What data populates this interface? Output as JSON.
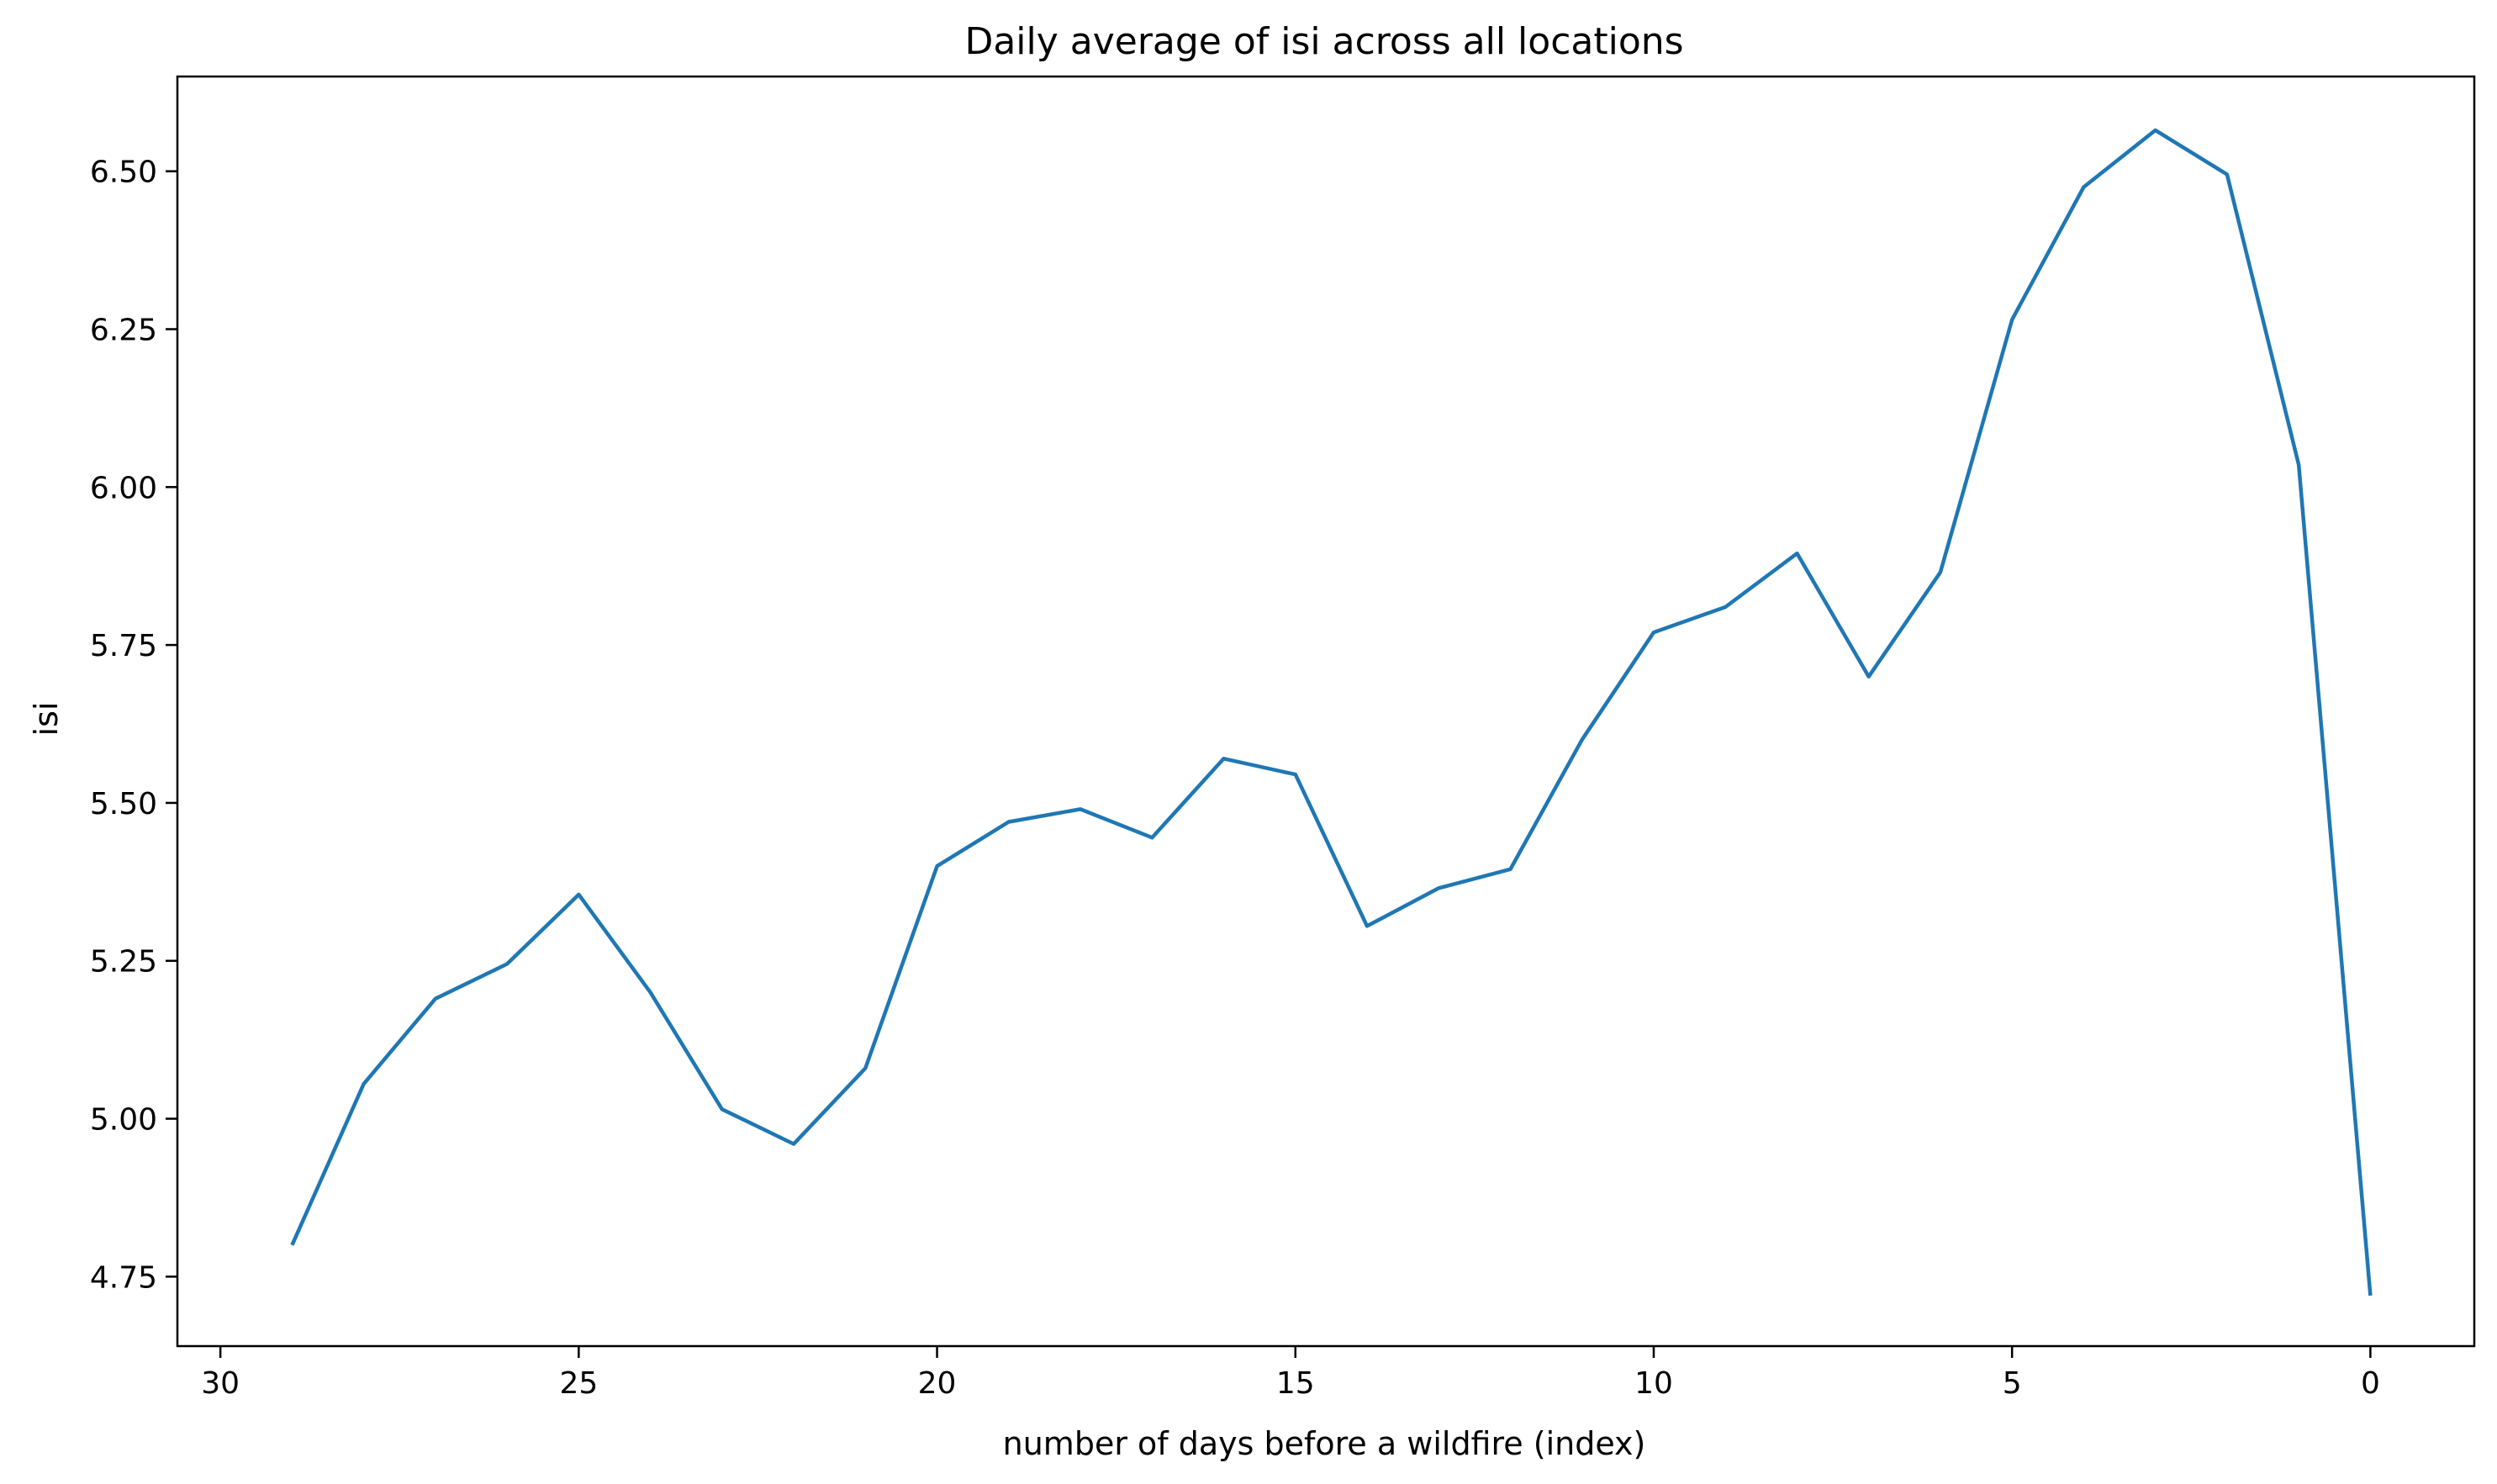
{
  "chart_data": {
    "type": "line",
    "title": "Daily average of isi across all locations",
    "xlabel": "number of days before a wildfire (index)",
    "ylabel": "isi",
    "xlim": [
      30.6,
      -1.45
    ],
    "ylim": [
      4.64,
      6.65
    ],
    "x_inverted": true,
    "grid": false,
    "legend": "none",
    "xticks": [
      30,
      25,
      20,
      15,
      10,
      5,
      0
    ],
    "xtick_labels": [
      "30",
      "25",
      "20",
      "15",
      "10",
      "5",
      "0"
    ],
    "yticks": [
      4.75,
      5.0,
      5.25,
      5.5,
      5.75,
      6.0,
      6.25,
      6.5
    ],
    "ytick_labels": [
      "4.75",
      "5.00",
      "5.25",
      "5.50",
      "5.75",
      "6.00",
      "6.25",
      "6.50"
    ],
    "series": [
      {
        "color": "#1f77b4",
        "x": [
          29,
          28,
          27,
          26,
          25,
          24,
          23,
          22,
          21,
          20,
          19,
          18,
          17,
          16,
          15,
          14,
          13,
          12,
          11,
          10,
          9,
          8,
          7,
          6,
          5,
          4,
          3,
          2,
          1,
          0
        ],
        "values": [
          4.8,
          5.055,
          5.19,
          5.245,
          5.355,
          5.2,
          5.015,
          4.96,
          5.08,
          5.4,
          5.47,
          5.49,
          5.445,
          5.57,
          5.545,
          5.305,
          5.365,
          5.395,
          5.6,
          5.77,
          5.81,
          5.895,
          5.7,
          5.865,
          6.265,
          6.475,
          6.565,
          6.495,
          6.035,
          4.72
        ]
      }
    ]
  }
}
